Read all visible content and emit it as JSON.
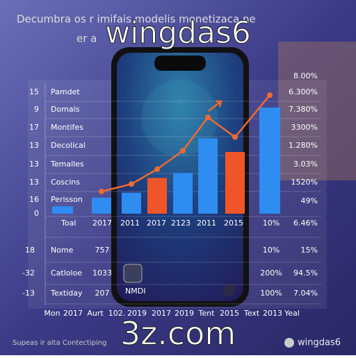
{
  "header": {
    "title": "Decumbra os r imifais modelis monetizaca ne",
    "subtitle": "er a"
  },
  "overlay": {
    "brand": "wingdas6",
    "domain": "3z.com"
  },
  "left_labels": [
    {
      "number": "15",
      "name": "Pamdet"
    },
    {
      "number": "9",
      "name": "Domals"
    },
    {
      "number": "17",
      "name": "Montifes"
    },
    {
      "number": "13",
      "name": "Decolical"
    },
    {
      "number": "13",
      "name": "Temalles"
    },
    {
      "number": "13",
      "name": "Coscins"
    },
    {
      "number": "16",
      "name": "Perisson"
    }
  ],
  "baseline": "0",
  "right_labels": [
    "8.00%",
    "6.300%",
    "7.380%",
    "3300%",
    "1.280%",
    "3.03%",
    "1520%",
    "49%"
  ],
  "table": {
    "rows": [
      [
        "Toal",
        "2017",
        "2011",
        "2017",
        "2123",
        "2011",
        "2015",
        "10%",
        "6.46%"
      ],
      [
        "18",
        "Nome",
        "757",
        "10%",
        "15%"
      ],
      [
        "-32",
        "Catloloe",
        "1033",
        "200%",
        "94.5%"
      ],
      [
        "-13",
        "Textiday",
        "207",
        "100%",
        "7.04%"
      ]
    ]
  },
  "x_axis_labels": [
    "Mon",
    "2017",
    "Aurt",
    "102.",
    "2019",
    "2017",
    "2019",
    "Tent",
    "2015",
    "Text",
    "2013",
    "Yeal"
  ],
  "phone": {
    "label": "NMDI"
  },
  "footer": {
    "left": "Supeas ir alta Contectiping",
    "right": "wingdas6"
  },
  "chart_data": {
    "type": "bar",
    "categories": [
      null,
      null,
      null,
      null,
      null,
      null,
      null,
      null
    ],
    "values": [
      6,
      13,
      17,
      29,
      33,
      61,
      50,
      86
    ],
    "colors": [
      "#2f8cf0",
      "#2f8cf0",
      "#2f8cf0",
      "#f0552a",
      "#2f8cf0",
      "#2f8cf0",
      "#f0552a",
      "#2f8cf0"
    ],
    "line": {
      "values": [
        null,
        18,
        24,
        36,
        51,
        78,
        62,
        96
      ],
      "color": "#f06a30"
    },
    "ylim": [
      0,
      100
    ]
  }
}
